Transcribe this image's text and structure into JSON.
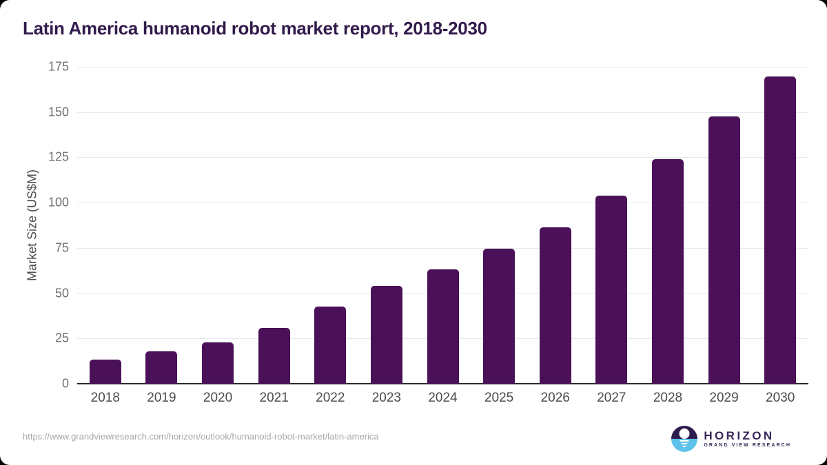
{
  "title": "Latin America humanoid robot market report, 2018-2030",
  "chart_data": {
    "type": "bar",
    "title": "Latin America humanoid robot market report, 2018-2030",
    "categories": [
      "2018",
      "2019",
      "2020",
      "2021",
      "2022",
      "2023",
      "2024",
      "2025",
      "2026",
      "2027",
      "2028",
      "2029",
      "2030"
    ],
    "values": [
      13.5,
      18,
      23,
      31,
      42.5,
      54,
      63,
      74.5,
      86.5,
      104,
      124,
      147.5,
      169.5
    ],
    "xlabel": "",
    "ylabel": "Market Size (US$M)",
    "ylim": [
      0,
      175
    ],
    "yticks": [
      0,
      25,
      50,
      75,
      100,
      125,
      150,
      175
    ],
    "grid": "horizontal-only",
    "legend": "none",
    "bar_color": "#4a1158"
  },
  "colors": {
    "bar": "#4a1158",
    "title_text": "#321a4b",
    "gridline": "#e8e8e8",
    "axis_line": "#2b2b2b",
    "logo_purple": "#2e1d4e",
    "logo_blue": "#5ec3ea"
  },
  "footer": {
    "source_url": "https://www.grandviewresearch.com/horizon/outlook/humanoid-robot-market/latin-america",
    "logo": {
      "name": "HORIZON",
      "subtitle": "GRAND VIEW RESEARCH"
    }
  }
}
